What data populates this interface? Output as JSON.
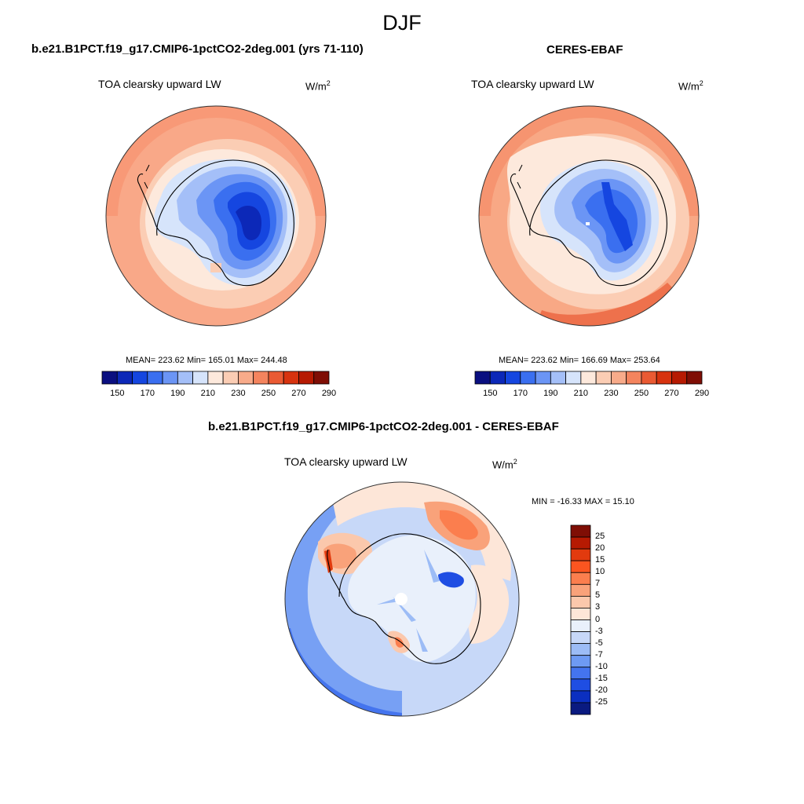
{
  "season": "DJF",
  "panels": [
    {
      "id": "model",
      "title": "b.e21.B1PCT.f19_g17.CMIP6-1pctCO2-2deg.001 (yrs 71-110)",
      "variable": "TOA clearsky upward LW",
      "units_base": "W/m",
      "units_exp": "2",
      "stats": "MEAN= 223.62  Min= 165.01  Max= 244.48"
    },
    {
      "id": "obs",
      "title": "CERES-EBAF",
      "variable": "TOA clearsky upward LW",
      "units_base": "W/m",
      "units_exp": "2",
      "stats": "MEAN= 223.62  Min= 166.69  Max= 253.64"
    },
    {
      "id": "diff",
      "title": "b.e21.B1PCT.f19_g17.CMIP6-1pctCO2-2deg.001 - CERES-EBAF",
      "variable": "TOA clearsky upward LW",
      "units_base": "W/m",
      "units_exp": "2",
      "stats": "MIN = -16.33 MAX =  15.10"
    }
  ],
  "colorbars": {
    "absolute": {
      "labels": [
        "150",
        "170",
        "190",
        "210",
        "230",
        "250",
        "270",
        "290"
      ],
      "colors": [
        "#0a0f80",
        "#0c28b8",
        "#1546e0",
        "#3a6ff0",
        "#6b95f5",
        "#a4bff8",
        "#d6e4fb",
        "#fde9dc",
        "#fbcdb4",
        "#f8ab8a",
        "#f4845e",
        "#ea5a33",
        "#d7330f",
        "#b61a02",
        "#7f0e05"
      ]
    },
    "difference": {
      "labels": [
        "25",
        "20",
        "15",
        "10",
        "7",
        "5",
        "3",
        "0",
        "-3",
        "-5",
        "-7",
        "-10",
        "-15",
        "-20",
        "-25"
      ],
      "colors": [
        "#7f0e05",
        "#b61a02",
        "#e23a0e",
        "#fb5520",
        "#fb7e4e",
        "#f9a27a",
        "#fbc8ac",
        "#fde6d8",
        "#e9f0fb",
        "#c7d8f8",
        "#9cbcf6",
        "#6e9af3",
        "#4474ee",
        "#1f4ee3",
        "#0b2fc0",
        "#0a1a80"
      ]
    }
  },
  "chart_data": [
    {
      "type": "heatmap",
      "title": "TOA clearsky upward LW",
      "projection": "south polar stereographic",
      "units": "W/m2",
      "mean": 223.62,
      "min": 165.01,
      "max": 244.48,
      "contour_levels": [
        150,
        160,
        170,
        180,
        190,
        200,
        210,
        220,
        230,
        240,
        250,
        260,
        270,
        280,
        290
      ]
    },
    {
      "type": "heatmap",
      "title": "TOA clearsky upward LW",
      "projection": "south polar stereographic",
      "units": "W/m2",
      "mean": 223.62,
      "min": 166.69,
      "max": 253.64,
      "contour_levels": [
        150,
        160,
        170,
        180,
        190,
        200,
        210,
        220,
        230,
        240,
        250,
        260,
        270,
        280,
        290
      ]
    },
    {
      "type": "heatmap",
      "title": "TOA clearsky upward LW",
      "projection": "south polar stereographic",
      "units": "W/m2",
      "min": -16.33,
      "max": 15.1,
      "contour_levels": [
        -25,
        -20,
        -15,
        -10,
        -7,
        -5,
        -3,
        0,
        3,
        5,
        7,
        10,
        15,
        20,
        25
      ]
    }
  ]
}
